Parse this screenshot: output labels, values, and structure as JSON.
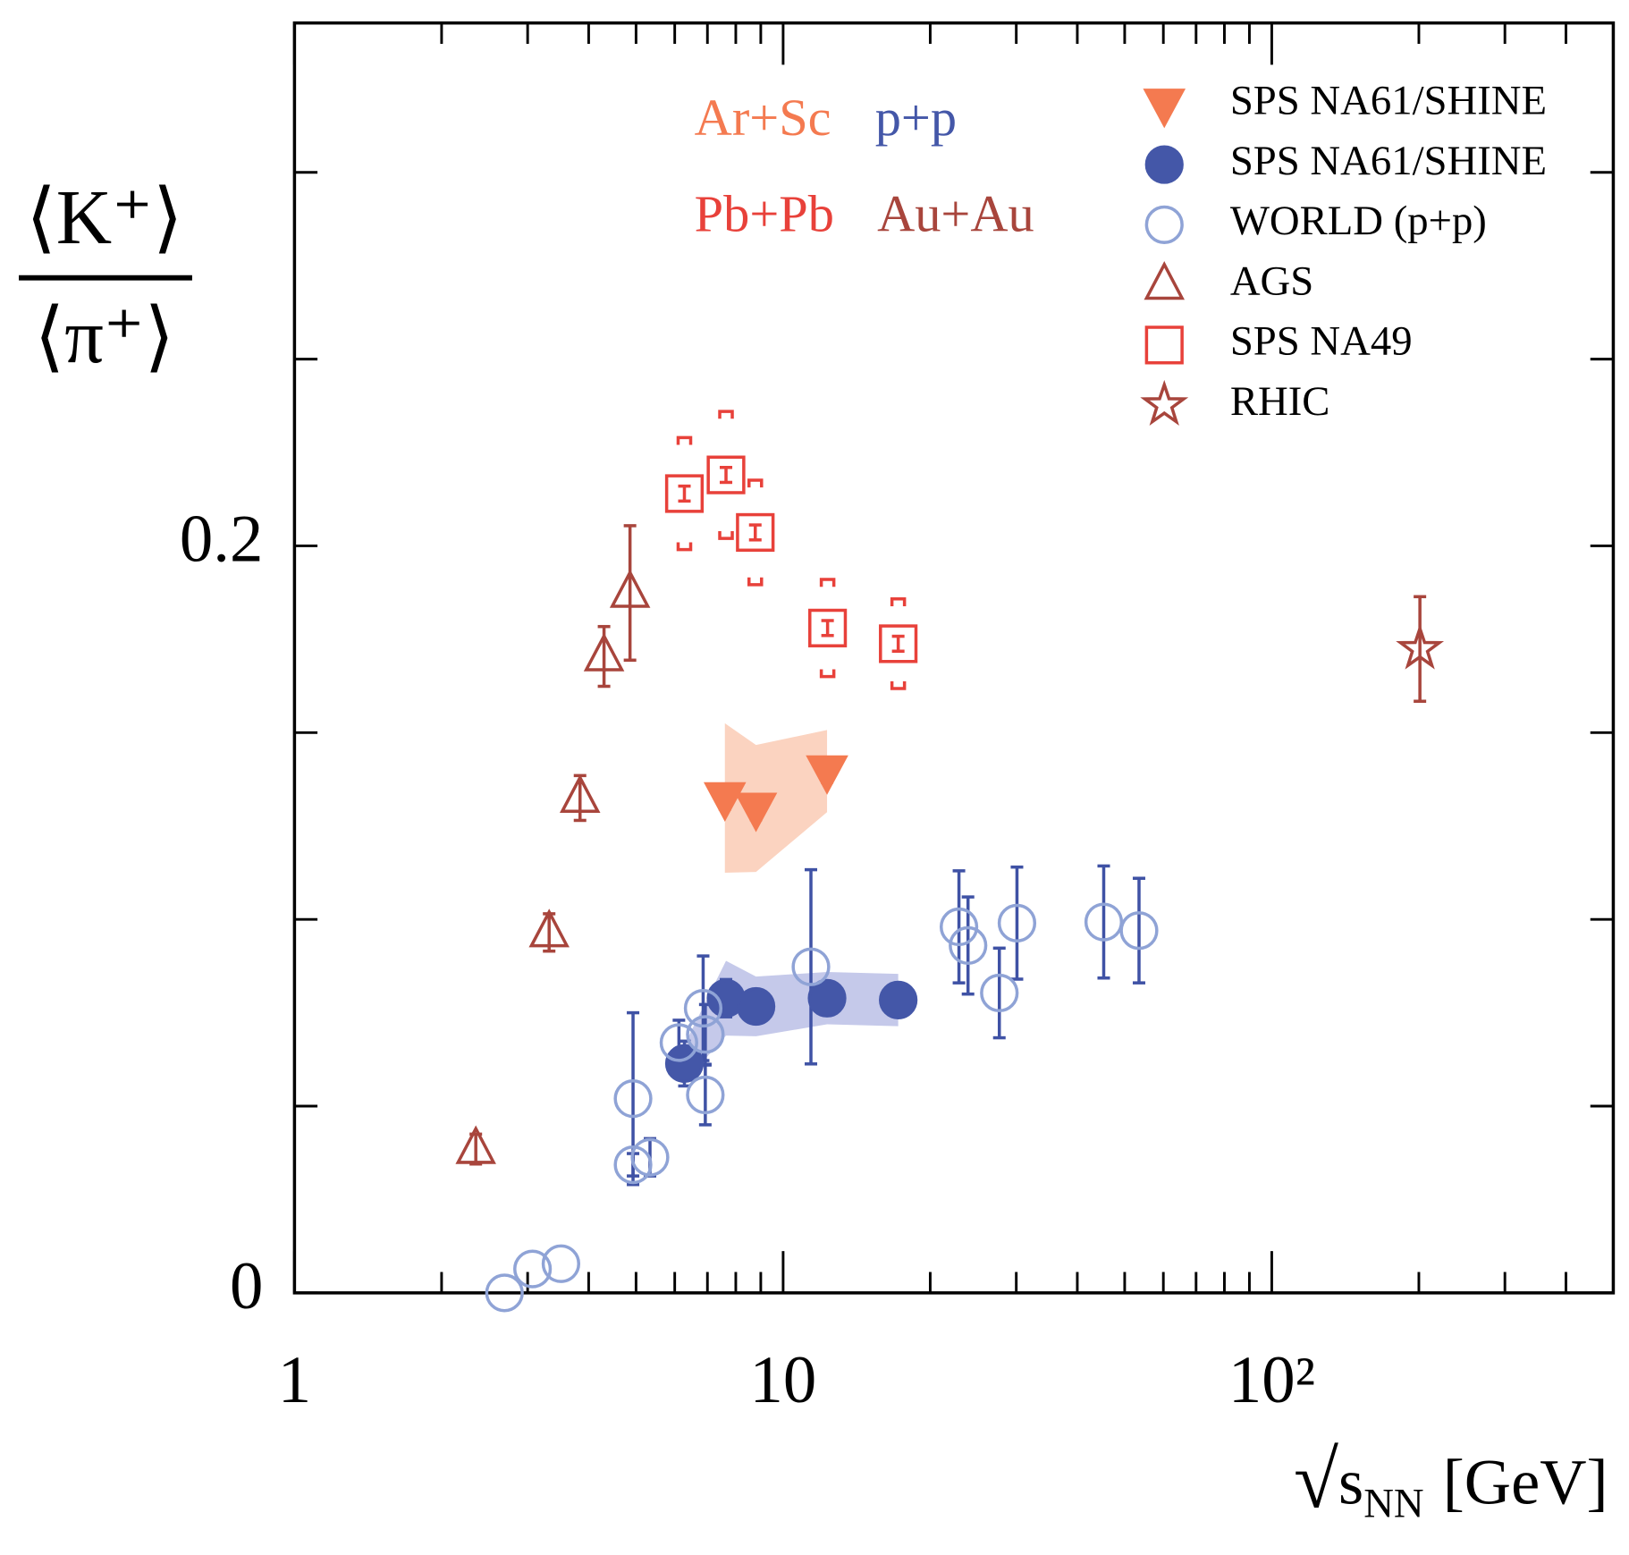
{
  "chart_data": {
    "type": "scatter",
    "xlabel": {
      "root": "√",
      "s": "s",
      "sub": "NN",
      "unit": "[GeV]"
    },
    "ylabel": {
      "numerator": "⟨K⁺⟩",
      "denominator": "⟨π⁺⟩"
    },
    "log_x": true,
    "xlim": [
      1,
      500
    ],
    "xticks": [
      1,
      10,
      {
        "value": 100,
        "label": "10²"
      }
    ],
    "minor_xticks": [
      2,
      3,
      4,
      5,
      6,
      7,
      8,
      9,
      20,
      30,
      40,
      50,
      60,
      70,
      80,
      90,
      200,
      300,
      400,
      500
    ],
    "ylim": [
      0,
      0.34
    ],
    "yticks": [
      0,
      0.2
    ],
    "minor_yticks": [
      0.05,
      0.1,
      0.15,
      0.25,
      0.3
    ],
    "legend": "top-right",
    "annotations": [
      {
        "text": "Ar+Sc",
        "color": "#f47a50"
      },
      {
        "text": "p+p",
        "color": "#4457a8"
      },
      {
        "text": "Pb+Pb",
        "color": "#e8413a"
      },
      {
        "text": "Au+Au",
        "color": "#a8453c"
      }
    ],
    "series": [
      {
        "name": "SPS NA61/SHINE",
        "marker": "triangle-down",
        "filled": true,
        "color": "#f47a50",
        "band_color": "#fbd3c0",
        "x": [
          7.6,
          8.8,
          12.3
        ],
        "values": [
          0.1325,
          0.1297,
          0.1397
        ],
        "errors": [
          0.003,
          0.003,
          0.003
        ],
        "sys_errors": [
          0.02,
          0.017,
          0.011
        ]
      },
      {
        "name": "SPS NA61/SHINE",
        "marker": "circle",
        "filled": true,
        "color": "#4457a8",
        "band_color": "#c5c9ea",
        "x": [
          6.28,
          7.64,
          8.8,
          12.3,
          17.2
        ],
        "values": [
          0.0614,
          0.0789,
          0.0767,
          0.0789,
          0.0784
        ],
        "errors": [
          0.006,
          0.005,
          0.004,
          0.004,
          0.004
        ],
        "sys_errors": [
          0.005,
          0.01,
          0.008,
          0.007,
          0.007
        ]
      },
      {
        "name": "WORLD (p+p)",
        "marker": "circle",
        "filled": false,
        "color": "#8fa3d6",
        "error_color": "#3f52a5",
        "x": [
          2.69,
          3.07,
          3.51,
          4.93,
          4.93,
          5.34,
          6.12,
          6.86,
          6.93,
          6.93,
          11.4,
          22.9,
          23.9,
          27.7,
          30.1,
          45.3,
          53.5
        ],
        "values": [
          0,
          0.0064,
          0.0078,
          0.052,
          0.0343,
          0.0363,
          0.067,
          0.0762,
          0.0692,
          0.053,
          0.0873,
          0.098,
          0.093,
          0.0803,
          0.099,
          0.0993,
          0.097
        ],
        "errors": [
          0,
          0,
          0,
          0.023,
          0.003,
          0.005,
          0.006,
          0.014,
          0.008,
          0.008,
          0.026,
          0.015,
          0.013,
          0.012,
          0.015,
          0.015,
          0.014
        ]
      },
      {
        "name": "AGS",
        "marker": "triangle-up",
        "filled": false,
        "color": "#a8453c",
        "x": [
          2.35,
          3.32,
          3.84,
          4.3,
          4.86
        ],
        "values": [
          0.0385,
          0.0965,
          0.1325,
          0.1704,
          0.1874
        ],
        "errors": [
          0.004,
          0.005,
          0.006,
          0.008,
          0.018
        ]
      },
      {
        "name": "SPS NA49",
        "marker": "square",
        "filled": false,
        "color": "#e8413a",
        "x": [
          6.28,
          7.64,
          8.77,
          12.33,
          17.2
        ],
        "values": [
          0.214,
          0.219,
          0.2036,
          0.178,
          0.1738
        ],
        "errors": [
          0.002,
          0.002,
          0.002,
          0.002,
          0.002
        ],
        "sys_errors": [
          0.015,
          0.017,
          0.014,
          0.013,
          0.012
        ]
      },
      {
        "name": "RHIC",
        "marker": "star",
        "filled": false,
        "color": "#a8453c",
        "x": [
          201
        ],
        "values": [
          0.1724
        ],
        "errors": [
          0.014
        ]
      }
    ]
  }
}
